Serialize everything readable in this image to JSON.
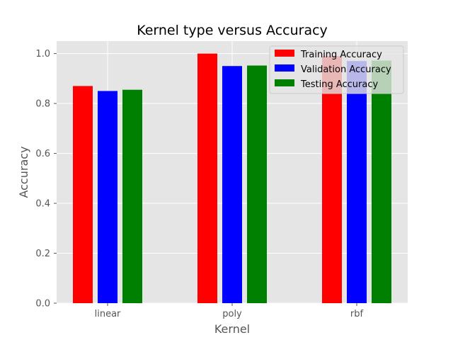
{
  "chart_data": {
    "type": "bar",
    "title": "Kernel type versus Accuracy",
    "xlabel": "Kernel",
    "ylabel": "Accuracy",
    "categories": [
      "linear",
      "poly",
      "rbf"
    ],
    "series": [
      {
        "name": "Training Accuracy",
        "color": "#ff0000",
        "values": [
          0.87,
          1.0,
          0.99
        ]
      },
      {
        "name": "Validation Accuracy",
        "color": "#0000ff",
        "values": [
          0.85,
          0.95,
          0.97
        ]
      },
      {
        "name": "Testing Accuracy",
        "color": "#008000",
        "values": [
          0.855,
          0.952,
          0.972
        ]
      }
    ],
    "yticks": [
      "0.0",
      "0.2",
      "0.4",
      "0.6",
      "0.8",
      "1.0"
    ],
    "ytick_values": [
      0,
      0.2,
      0.4,
      0.6,
      0.8,
      1.0
    ],
    "ylim": [
      0,
      1.05
    ],
    "grid": true,
    "legend_position": "top-right",
    "style": "ggplot"
  }
}
